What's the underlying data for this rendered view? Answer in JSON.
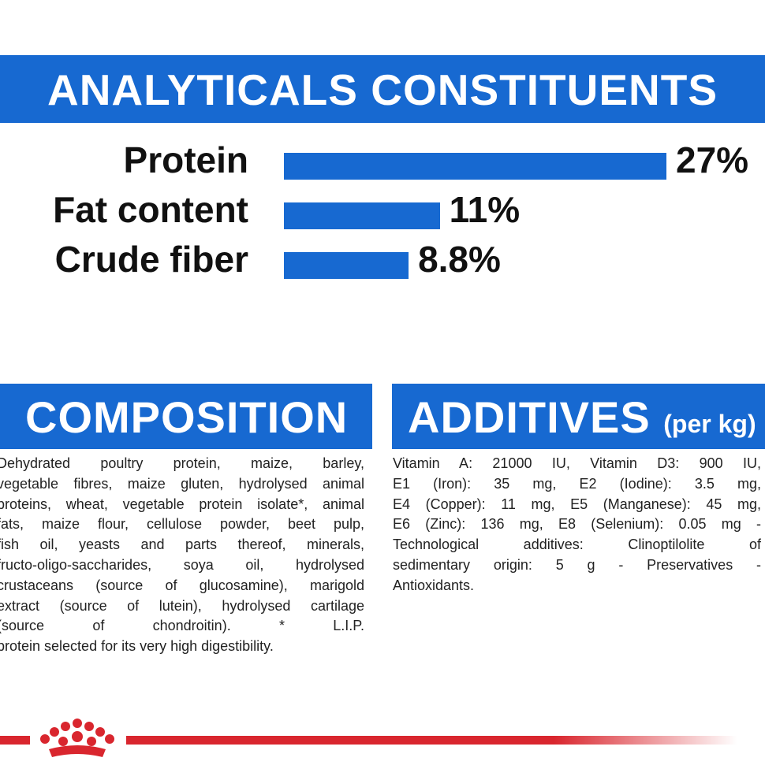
{
  "chart_data": {
    "type": "bar",
    "orientation": "horizontal",
    "title": "ANALYTICALS CONSTITUENTS",
    "categories": [
      "Protein",
      "Fat content",
      "Crude fiber"
    ],
    "values": [
      27,
      11,
      8.8
    ],
    "value_labels": [
      "27%",
      "11%",
      "8.8%"
    ],
    "color": "#1769d1"
  },
  "composition": {
    "title": "COMPOSITION",
    "lines": [
      "Dehydrated poultry protein, maize, barley,",
      "vegetable fibres, maize gluten, hydrolysed animal",
      "proteins, wheat, vegetable protein isolate*, animal",
      "fats, maize flour, cellulose powder, beet pulp,",
      "fish oil, yeasts and parts thereof, minerals,",
      "fructo-oligo-saccharides, soya oil, hydrolysed",
      "crustaceans (source of glucosamine), marigold",
      "extract (source of lutein), hydrolysed cartilage",
      "(source of chondroitin). * L.I.P.",
      "protein selected for its very high digestibility."
    ]
  },
  "additives": {
    "title": "ADDITIVES",
    "subtitle": "(per kg)",
    "lines": [
      "Vitamin A: 21000 IU, Vitamin D3: 900 IU,",
      "E1 (Iron): 35 mg, E2 (Iodine): 3.5 mg,",
      "E4 (Copper): 11 mg, E5 (Manganese): 45 mg,",
      "E6 (Zinc): 136 mg, E8 (Selenium): 0.05 mg -",
      "Technological additives: Clinoptilolite of",
      "sedimentary origin: 5 g - Preservatives -",
      "Antioxidants."
    ]
  }
}
